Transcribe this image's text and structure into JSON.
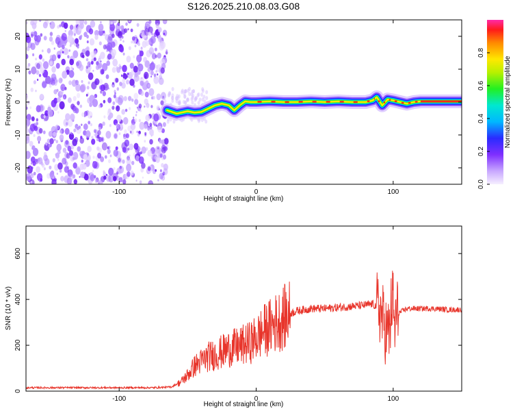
{
  "title": "S126.2025.210.08.03.G08",
  "colors": {
    "snr_line": "#e8352b",
    "track_center": "#ff2a1a",
    "noise": "#7a2cff"
  },
  "chart_data": [
    {
      "type": "heatmap",
      "xlabel": "Height of straight line (km)",
      "ylabel": "Frequency (Hz)",
      "xlim": [
        -168,
        150
      ],
      "ylim": [
        -25,
        25
      ],
      "xticks": [
        -100,
        0,
        100
      ],
      "yticks": [
        -20,
        -10,
        0,
        10,
        20
      ],
      "colorbar": {
        "label": "Normalized spectral amplitude",
        "ticks": [
          "0.0",
          "0.2",
          "0.4",
          "0.6",
          "0.8"
        ],
        "range": [
          0,
          1
        ]
      },
      "noise_region_x": [
        -168,
        -65
      ],
      "track": {
        "x": [
          -65,
          -58,
          -50,
          -45,
          -40,
          -35,
          -30,
          -25,
          -20,
          -16,
          -12,
          -8,
          -4,
          0,
          10,
          20,
          30,
          40,
          50,
          60,
          70,
          80,
          85,
          88,
          92,
          96,
          100,
          105,
          110,
          115,
          120,
          130,
          140,
          150
        ],
        "y": [
          -2.5,
          -3.5,
          -2.8,
          -3.2,
          -3.0,
          -2.0,
          -1.0,
          -0.5,
          -1.0,
          -2.5,
          -1.0,
          0.2,
          0.0,
          0.0,
          0.2,
          0.0,
          0.0,
          0.2,
          0.0,
          0.2,
          0.0,
          0.0,
          0.5,
          1.5,
          -1.0,
          0.8,
          0.5,
          0.0,
          -0.5,
          0.0,
          0.2,
          0.2,
          0.2,
          0.2
        ]
      }
    },
    {
      "type": "line",
      "xlabel": "Height of straight line (km)",
      "ylabel": "SNR (10 * v/v)",
      "xlim": [
        -168,
        150
      ],
      "ylim": [
        0,
        720
      ],
      "xticks": [
        -100,
        0,
        100
      ],
      "yticks": [
        0,
        200,
        400,
        600
      ],
      "series": [
        {
          "x": [
            -168,
            -150,
            -130,
            -110,
            -90,
            -75,
            -62,
            -55,
            -50,
            -45,
            -40,
            -35,
            -30,
            -25,
            -20,
            -15,
            -10,
            -5,
            0,
            5,
            10,
            15,
            20,
            25,
            30,
            40,
            50,
            60,
            70,
            80,
            85,
            90,
            93,
            95,
            97,
            98,
            99,
            100,
            101,
            102,
            104,
            107,
            110,
            120,
            130,
            140,
            150
          ],
          "values": [
            15,
            15,
            15,
            15,
            15,
            15,
            18,
            40,
            70,
            110,
            130,
            150,
            160,
            170,
            185,
            190,
            200,
            210,
            230,
            260,
            280,
            300,
            320,
            340,
            350,
            360,
            360,
            365,
            370,
            375,
            380,
            360,
            300,
            260,
            250,
            300,
            400,
            380,
            260,
            330,
            340,
            350,
            360,
            360,
            360,
            355,
            355
          ]
        }
      ]
    }
  ]
}
